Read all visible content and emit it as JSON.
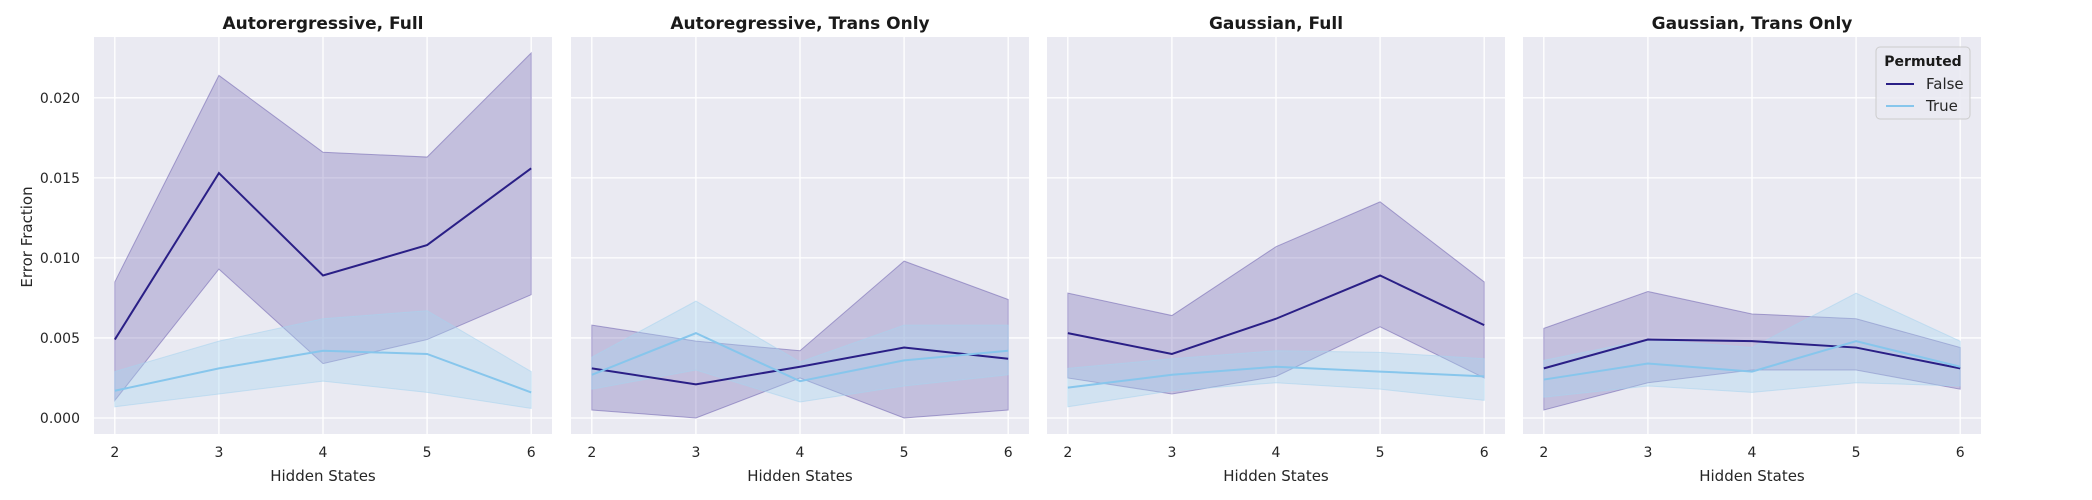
{
  "figure": {
    "ylabel": "Error Fraction",
    "xlabel": "Hidden States",
    "legend": {
      "title": "Permuted",
      "placement": "top-right",
      "entries": [
        "False",
        "True"
      ]
    },
    "colors": {
      "False": "#2a1f86",
      "True": "#87c6ec",
      "band_False": "#6f62b0",
      "band_True": "#a8d4ee",
      "panel_bg": "#eaeaf2",
      "grid": "#ffffff"
    }
  },
  "chart_data": [
    {
      "type": "line",
      "title": "Autorergressive, Full",
      "xlabel": "Hidden States",
      "ylabel": "Error Fraction",
      "x": [
        2,
        3,
        4,
        5,
        6
      ],
      "xlim": [
        1.8,
        6.2
      ],
      "ylim": [
        -0.001,
        0.0238
      ],
      "yticks": [
        "0.000",
        "0.005",
        "0.010",
        "0.015",
        "0.020"
      ],
      "grid": true,
      "series": [
        {
          "name": "False",
          "values": [
            0.0049,
            0.0153,
            0.0089,
            0.0108,
            0.0156
          ],
          "lower": [
            0.0011,
            0.0093,
            0.0034,
            0.0049,
            0.0077
          ],
          "upper": [
            0.0085,
            0.0214,
            0.0166,
            0.0163,
            0.0228
          ]
        },
        {
          "name": "True",
          "values": [
            0.0017,
            0.0031,
            0.0042,
            0.004,
            0.0016
          ],
          "lower": [
            0.0007,
            0.0015,
            0.0023,
            0.0016,
            0.0006
          ],
          "upper": [
            0.0029,
            0.0048,
            0.0062,
            0.0067,
            0.0029
          ]
        }
      ]
    },
    {
      "type": "line",
      "title": "Autoregressive, Trans Only",
      "xlabel": "Hidden States",
      "x": [
        2,
        3,
        4,
        5,
        6
      ],
      "xlim": [
        1.8,
        6.2
      ],
      "ylim": [
        -0.001,
        0.0238
      ],
      "grid": true,
      "series": [
        {
          "name": "False",
          "values": [
            0.0031,
            0.0021,
            0.0032,
            0.0044,
            0.0037
          ],
          "lower": [
            0.0005,
            0.0,
            0.0025,
            0.0,
            0.0005
          ],
          "upper": [
            0.0058,
            0.0048,
            0.0042,
            0.0098,
            0.0074
          ]
        },
        {
          "name": "True",
          "values": [
            0.0027,
            0.0053,
            0.0023,
            0.0036,
            0.0042
          ],
          "lower": [
            0.0018,
            0.003,
            0.001,
            0.002,
            0.0027
          ],
          "upper": [
            0.0038,
            0.0073,
            0.0035,
            0.0058,
            0.0058
          ]
        }
      ]
    },
    {
      "type": "line",
      "title": "Gaussian, Full",
      "xlabel": "Hidden States",
      "x": [
        2,
        3,
        4,
        5,
        6
      ],
      "xlim": [
        1.8,
        6.2
      ],
      "ylim": [
        -0.001,
        0.0238
      ],
      "grid": true,
      "series": [
        {
          "name": "False",
          "values": [
            0.0053,
            0.004,
            0.0062,
            0.0089,
            0.0058
          ],
          "lower": [
            0.0025,
            0.0015,
            0.0026,
            0.0057,
            0.0025
          ],
          "upper": [
            0.0078,
            0.0064,
            0.0107,
            0.0135,
            0.0085
          ]
        },
        {
          "name": "True",
          "values": [
            0.0019,
            0.0027,
            0.0032,
            0.0029,
            0.0026
          ],
          "lower": [
            0.0007,
            0.0017,
            0.0022,
            0.0018,
            0.0011
          ],
          "upper": [
            0.0031,
            0.0037,
            0.0042,
            0.0041,
            0.0037
          ]
        }
      ]
    },
    {
      "type": "line",
      "title": "Gaussian, Trans Only",
      "xlabel": "Hidden States",
      "x": [
        2,
        3,
        4,
        5,
        6
      ],
      "xlim": [
        1.8,
        6.2
      ],
      "ylim": [
        -0.001,
        0.0238
      ],
      "grid": true,
      "series": [
        {
          "name": "False",
          "values": [
            0.0031,
            0.0049,
            0.0048,
            0.0044,
            0.0031
          ],
          "lower": [
            0.0005,
            0.0022,
            0.003,
            0.003,
            0.0018
          ],
          "upper": [
            0.0056,
            0.0079,
            0.0065,
            0.0062,
            0.0044
          ]
        },
        {
          "name": "True",
          "values": [
            0.0024,
            0.0034,
            0.0029,
            0.0048,
            0.0032
          ],
          "lower": [
            0.0013,
            0.002,
            0.0016,
            0.0022,
            0.002
          ],
          "upper": [
            0.0036,
            0.0049,
            0.0044,
            0.0078,
            0.0048
          ]
        }
      ]
    }
  ]
}
